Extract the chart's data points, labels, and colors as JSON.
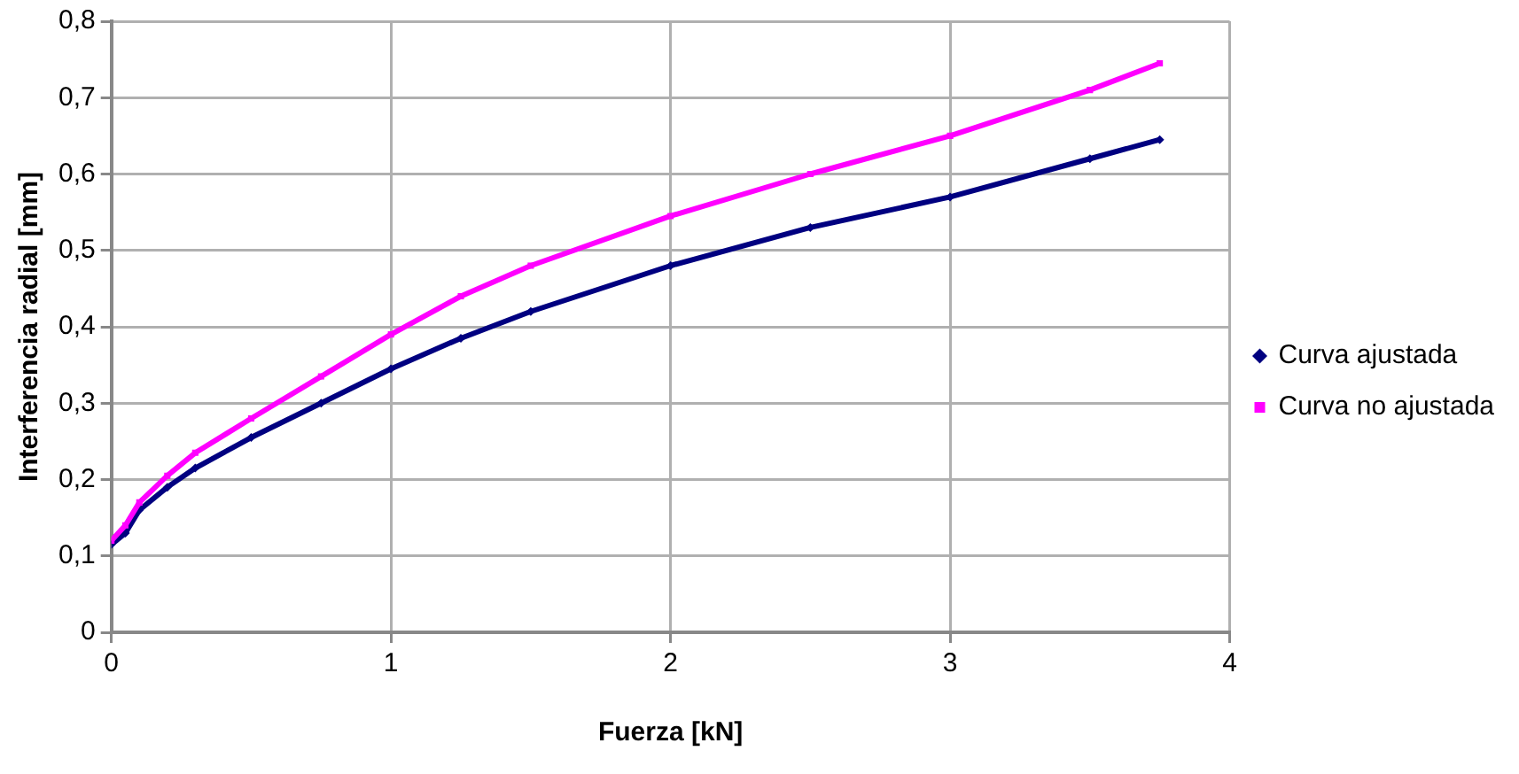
{
  "chart_data": {
    "type": "line",
    "xlabel": "Fuerza [kN]",
    "ylabel": "Interferencia radial [mm]",
    "xlim": [
      0,
      4
    ],
    "xticks": [
      0,
      1,
      2,
      3,
      4
    ],
    "ylim": [
      0,
      0.8
    ],
    "yticks": [
      {
        "value": 0,
        "label": "0"
      },
      {
        "value": 0.1,
        "label": "0,1"
      },
      {
        "value": 0.2,
        "label": "0,2"
      },
      {
        "value": 0.3,
        "label": "0,3"
      },
      {
        "value": 0.4,
        "label": "0,4"
      },
      {
        "value": 0.5,
        "label": "0,5"
      },
      {
        "value": 0.6,
        "label": "0,6"
      },
      {
        "value": 0.7,
        "label": "0,7"
      },
      {
        "value": 0.8,
        "label": "0,8"
      }
    ],
    "grid": true,
    "legend": "right",
    "line_style": "solid",
    "series": [
      {
        "name": "Curva ajustada",
        "color": "#000080",
        "marker": "diamond",
        "x": [
          0,
          0.05,
          0.1,
          0.2,
          0.3,
          0.5,
          0.75,
          1,
          1.25,
          1.5,
          2,
          2.5,
          3,
          3.5,
          3.75
        ],
        "values": [
          0.115,
          0.13,
          0.16,
          0.19,
          0.215,
          0.255,
          0.3,
          0.345,
          0.385,
          0.42,
          0.48,
          0.53,
          0.57,
          0.62,
          0.645
        ]
      },
      {
        "name": "Curva no ajustada",
        "color": "#ff00ff",
        "marker": "square",
        "x": [
          0,
          0.05,
          0.1,
          0.2,
          0.3,
          0.5,
          0.75,
          1,
          1.25,
          1.5,
          2,
          2.5,
          3,
          3.5,
          3.75
        ],
        "values": [
          0.12,
          0.14,
          0.17,
          0.205,
          0.235,
          0.28,
          0.335,
          0.39,
          0.44,
          0.48,
          0.545,
          0.6,
          0.65,
          0.71,
          0.745
        ]
      }
    ]
  }
}
